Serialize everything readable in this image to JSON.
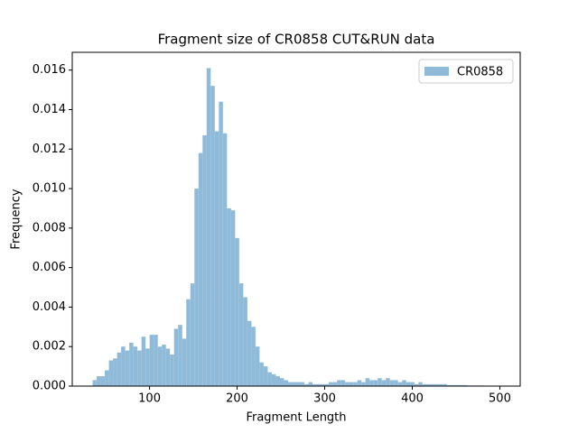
{
  "chart_data": {
    "type": "histogram",
    "title": "Fragment size of CR0858 CUT&RUN data",
    "x_label": "Fragment Length",
    "y_label": "Frequency",
    "bins": [
      35,
      39.65,
      44.3,
      48.95,
      53.6,
      58.25,
      62.9,
      67.55,
      72.2,
      76.85,
      81.5,
      86.15,
      90.8,
      95.45,
      100.1,
      104.75,
      109.4,
      114.05,
      118.7,
      123.35,
      128,
      132.65,
      137.3,
      141.95,
      146.6,
      151.25,
      155.9,
      160.55,
      165.2,
      169.85,
      174.5,
      179.15,
      183.8,
      188.45,
      193.1,
      197.75,
      202.4,
      207.05,
      211.7,
      216.35,
      221,
      225.65,
      230.3,
      234.95,
      239.6,
      244.25,
      248.9,
      253.55,
      258.2,
      262.85,
      267.5,
      272.15,
      276.8,
      281.45,
      286.1,
      290.75,
      295.4,
      300.05,
      304.7,
      309.35,
      314,
      318.65,
      323.3,
      327.95,
      332.6,
      337.25,
      341.9,
      346.55,
      351.2,
      355.85,
      360.5,
      365.15,
      369.8,
      374.45,
      379.1,
      383.75,
      388.4,
      393.05,
      397.7,
      402.35,
      407,
      411.65,
      416.3,
      420.95,
      425.6,
      430.25,
      434.9,
      439.55,
      444.2,
      448.85,
      453.5,
      458.15,
      462.8,
      467.45,
      472.1,
      476.75,
      481.4,
      486.05,
      490.7,
      495.35,
      500
    ],
    "series": [
      {
        "name": "CR0858",
        "color": "#8fbbd9",
        "values": [
          0.0003,
          0.0005,
          0.0005,
          0.0008,
          0.0013,
          0.0014,
          0.0017,
          0.002,
          0.0018,
          0.0022,
          0.002,
          0.0018,
          0.0025,
          0.0019,
          0.0026,
          0.0026,
          0.002,
          0.0021,
          0.0019,
          0.0016,
          0.0029,
          0.0031,
          0.0024,
          0.0044,
          0.0052,
          0.01,
          0.0118,
          0.0127,
          0.0161,
          0.0152,
          0.0129,
          0.0144,
          0.0128,
          0.009,
          0.0089,
          0.0075,
          0.0052,
          0.0045,
          0.0033,
          0.003,
          0.002,
          0.0012,
          0.001,
          0.0007,
          0.0006,
          0.0005,
          0.0004,
          0.0003,
          0.0002,
          0.0002,
          0.0002,
          0.0002,
          0.0001,
          0.0002,
          0.0001,
          0.0001,
          0.0001,
          0.0001,
          0.0002,
          0.0002,
          0.0003,
          0.0003,
          0.0002,
          0.0002,
          0.0002,
          0.0003,
          0.0002,
          0.0004,
          0.0003,
          0.0003,
          0.0004,
          0.0003,
          0.0004,
          0.0003,
          0.0003,
          0.0002,
          0.0003,
          0.0002,
          0.0002,
          0.0001,
          0.0002,
          0.0001,
          0.0001,
          0.0001,
          0.0001,
          0.0001,
          0.0001,
          5e-05,
          5e-05,
          5e-05,
          5e-05,
          5e-05,
          3e-05,
          3e-05,
          3e-05,
          3e-05,
          2e-05,
          2e-05,
          2e-05,
          2e-05
        ]
      }
    ],
    "xlim": [
      11.75,
      523.25
    ],
    "xticks": [
      100,
      200,
      300,
      400,
      500
    ],
    "ylim": [
      0,
      0.0169
    ],
    "yticks": [
      {
        "value": 0,
        "label": "0.000"
      },
      {
        "value": 0.002,
        "label": "0.002"
      },
      {
        "value": 0.004,
        "label": "0.004"
      },
      {
        "value": 0.006,
        "label": "0.006"
      },
      {
        "value": 0.008,
        "label": "0.008"
      },
      {
        "value": 0.01,
        "label": "0.010"
      },
      {
        "value": 0.012,
        "label": "0.012"
      },
      {
        "value": 0.014,
        "label": "0.014"
      },
      {
        "value": 0.016,
        "label": "0.016"
      }
    ],
    "legend": "upper right"
  }
}
